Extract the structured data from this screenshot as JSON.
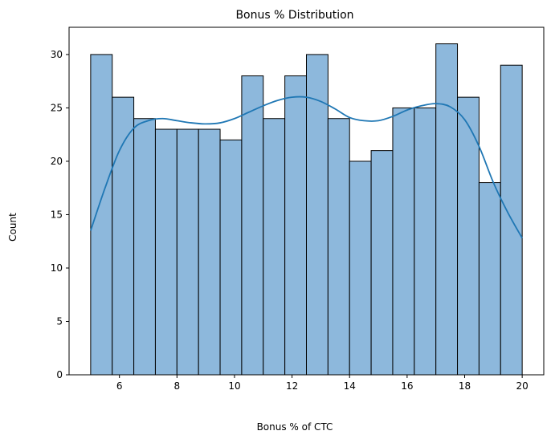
{
  "chart_data": {
    "type": "bar",
    "subtype": "histogram-with-kde",
    "title": "Bonus % Distribution",
    "xlabel": "Bonus % of CTC",
    "ylabel": "Count",
    "xlim": [
      4.25,
      20.75
    ],
    "ylim": [
      0,
      32.55
    ],
    "xticks": [
      6,
      8,
      10,
      12,
      14,
      16,
      18,
      20
    ],
    "yticks": [
      0,
      5,
      10,
      15,
      20,
      25,
      30
    ],
    "bins": {
      "start": 5,
      "end": 20,
      "width": 0.75,
      "counts": [
        30,
        26,
        24,
        23,
        23,
        23,
        22,
        28,
        24,
        28,
        30,
        24,
        20,
        21,
        25,
        25,
        31,
        26,
        18,
        29
      ]
    },
    "kde": {
      "x": [
        5.0,
        5.5,
        6.0,
        6.5,
        7.0,
        7.5,
        8.0,
        8.5,
        9.0,
        9.5,
        10.0,
        10.5,
        11.0,
        11.5,
        12.0,
        12.5,
        13.0,
        13.5,
        14.0,
        14.5,
        15.0,
        15.5,
        16.0,
        16.5,
        17.0,
        17.5,
        18.0,
        18.5,
        19.0,
        19.5,
        20.0
      ],
      "y": [
        13.5,
        17.5,
        21.0,
        23.1,
        23.8,
        24.0,
        23.8,
        23.6,
        23.5,
        23.6,
        24.0,
        24.6,
        25.2,
        25.7,
        26.0,
        26.0,
        25.6,
        24.9,
        24.1,
        23.8,
        23.8,
        24.2,
        24.8,
        25.2,
        25.4,
        25.1,
        23.9,
        21.4,
        18.0,
        15.2,
        12.8
      ]
    },
    "grid": false,
    "legend": "none",
    "colors": {
      "bar_fill": "#8db8dc",
      "bar_edge": "#000000",
      "kde_line": "#1f77b4"
    }
  }
}
